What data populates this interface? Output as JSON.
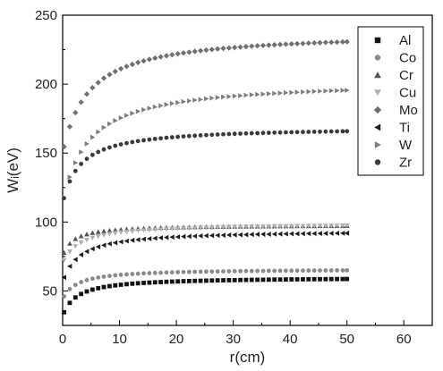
{
  "chart_data": {
    "type": "scatter",
    "xlabel": "r(cm)",
    "ylabel": "Wᵢ(eV)",
    "xlim": [
      0,
      65
    ],
    "ylim": [
      25,
      250
    ],
    "xticks": [
      0,
      10,
      20,
      30,
      40,
      50,
      60
    ],
    "yticks": [
      50,
      100,
      150,
      200,
      250
    ],
    "grid": false,
    "legend_position": "top-right",
    "series": [
      {
        "name": "Al",
        "marker": "square",
        "color": "#111111",
        "saturation": 60,
        "start": 32,
        "k": 2.5
      },
      {
        "name": "Co",
        "marker": "circle",
        "color": "#8a8a8a",
        "saturation": 66,
        "start": 44,
        "k": 2.5
      },
      {
        "name": "Cr",
        "marker": "triangle-up",
        "color": "#555555",
        "saturation": 98,
        "start": 75,
        "k": 1.8
      },
      {
        "name": "Cu",
        "marker": "triangle-down",
        "color": "#b0b0b0",
        "saturation": 99,
        "start": 70,
        "k": 3.0
      },
      {
        "name": "Mo",
        "marker": "diamond",
        "color": "#6f6f6f",
        "saturation": 238,
        "start": 150,
        "k": 4.5
      },
      {
        "name": "Ti",
        "marker": "triangle-left",
        "color": "#1e1e1e",
        "saturation": 94,
        "start": 57,
        "k": 3.0
      },
      {
        "name": "W",
        "marker": "triangle-right",
        "color": "#7c7c7c",
        "saturation": 203,
        "start": 113,
        "k": 4.5
      },
      {
        "name": "Zr",
        "marker": "circle",
        "color": "#3a3a3a",
        "saturation": 169,
        "start": 113,
        "k": 3.0
      }
    ],
    "x_sample": {
      "from": 0.25,
      "to": 50,
      "step": 1.0
    }
  }
}
